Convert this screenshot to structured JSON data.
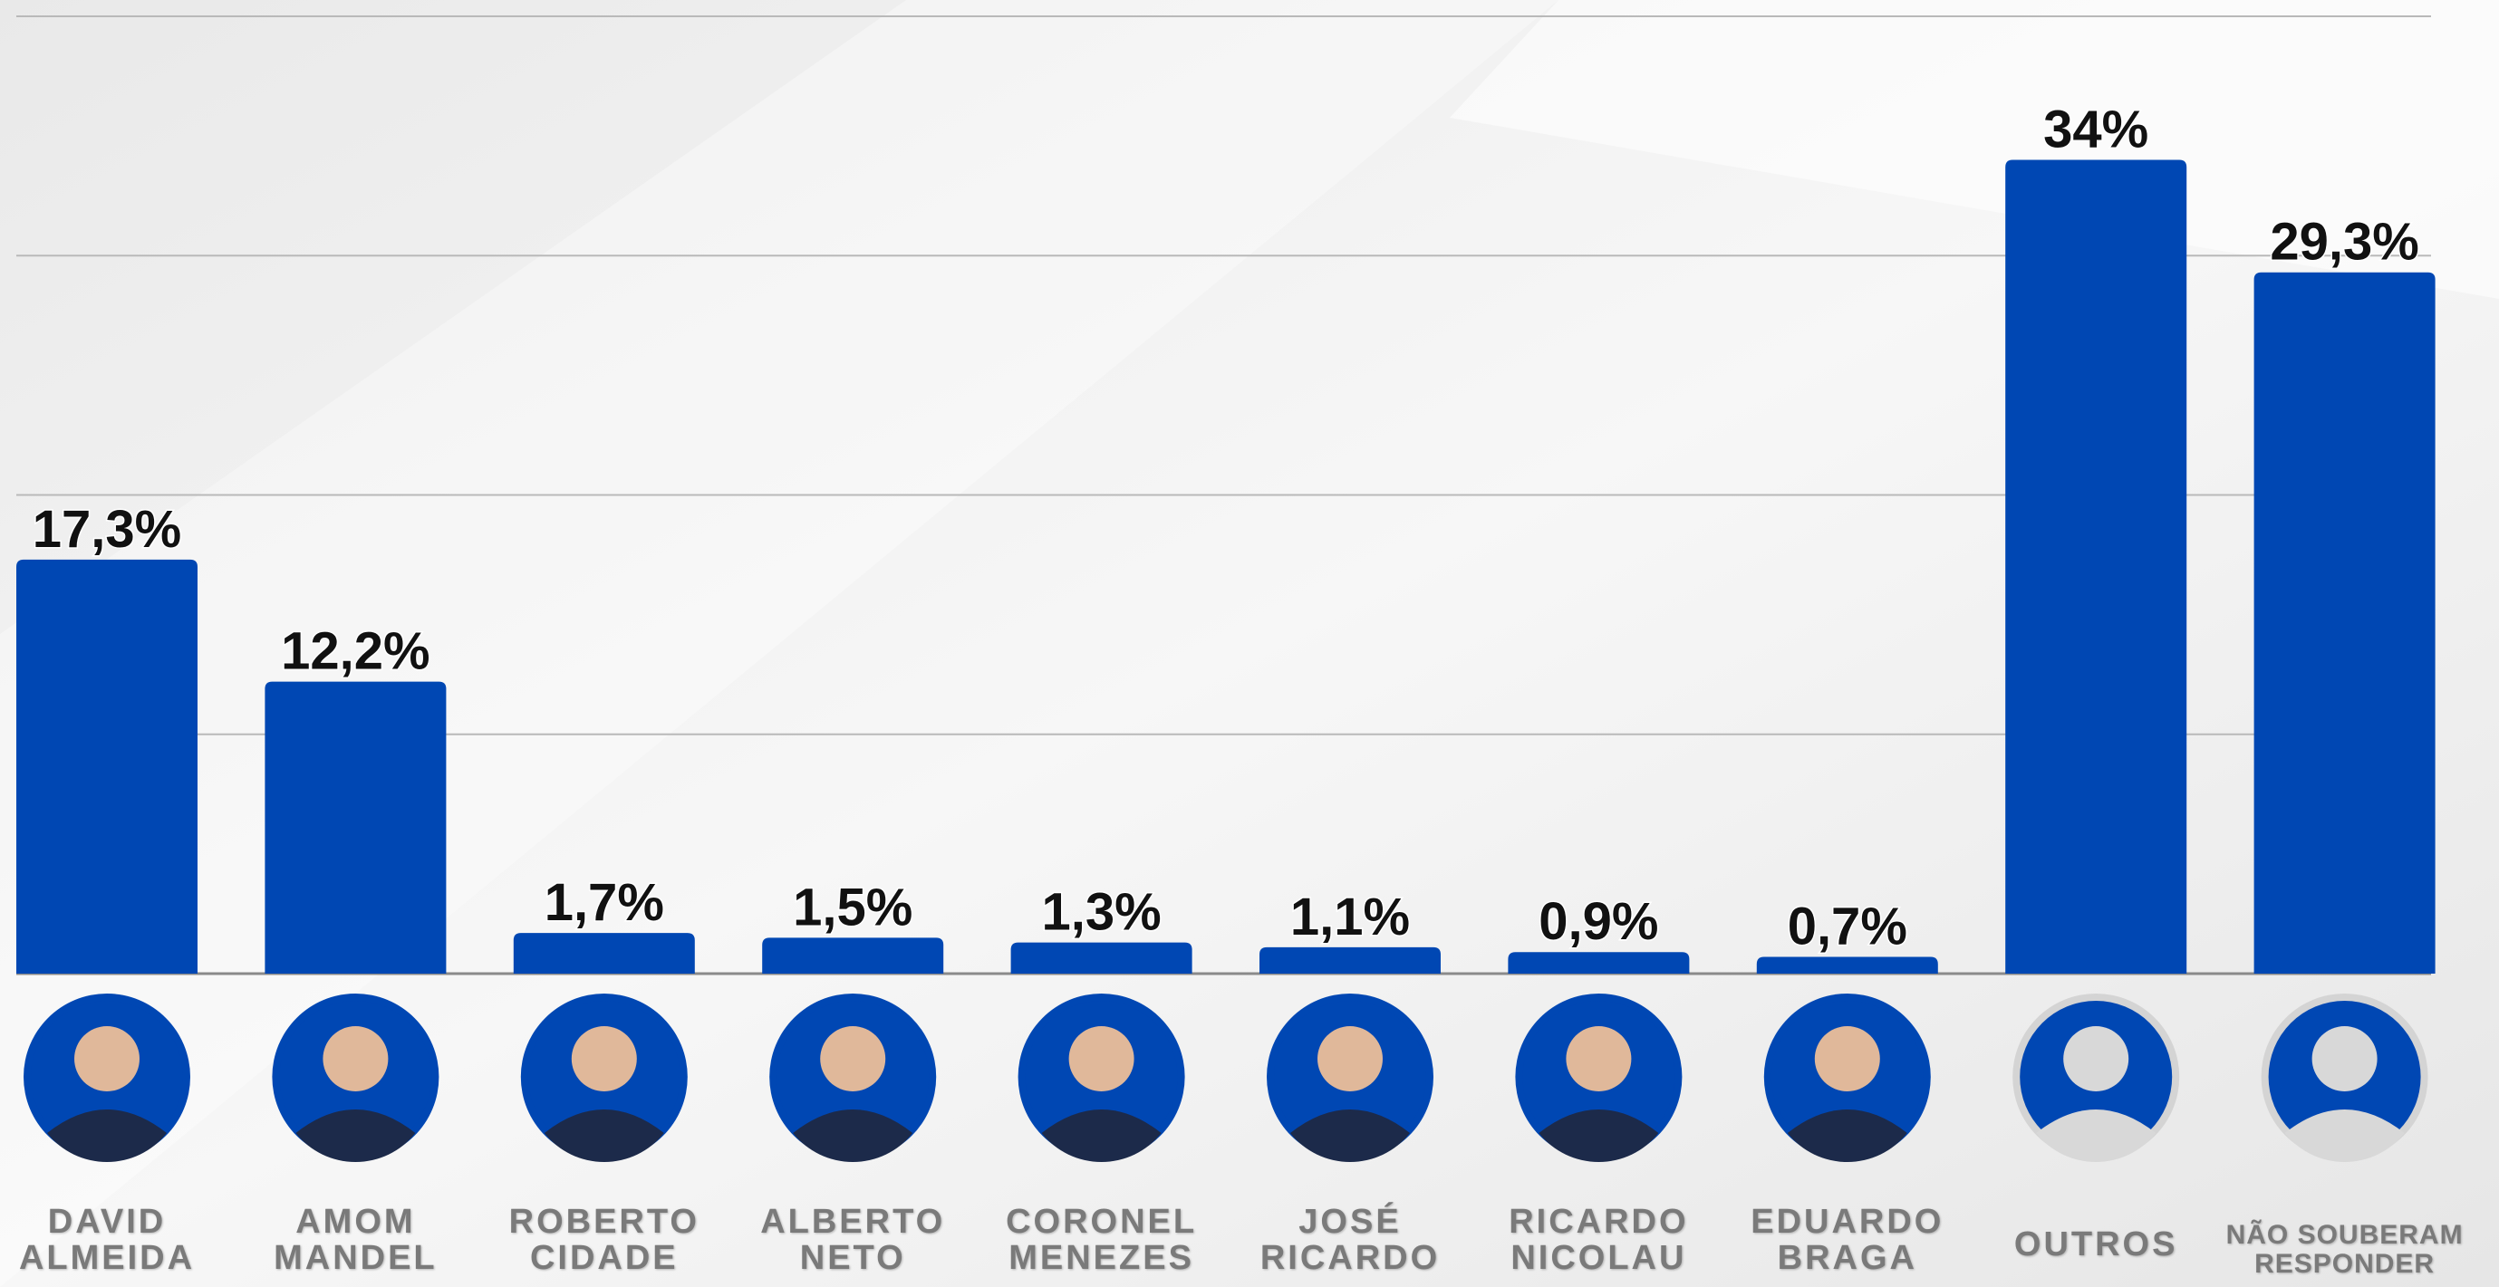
{
  "chart_data": {
    "type": "bar",
    "categories": [
      "DAVID ALMEIDA",
      "AMOM MANDEL",
      "ROBERTO CIDADE",
      "ALBERTO NETO",
      "CORONEL MENEZES",
      "JOSÉ RICARDO",
      "RICARDO NICOLAU",
      "EDUARDO BRAGA",
      "OUTROS",
      "NÃO SOUBERAM RESPONDER"
    ],
    "values": [
      17.3,
      12.2,
      1.7,
      1.5,
      1.3,
      1.1,
      0.9,
      0.7,
      34,
      29.3
    ],
    "value_labels": [
      "17,3%",
      "12,2%",
      "1,7%",
      "1,5%",
      "1,3%",
      "1,1%",
      "0,9%",
      "0,7%",
      "34%",
      "29,3%"
    ],
    "color": "#0047b3",
    "ylim": [
      0,
      40
    ],
    "yticks": [
      0,
      10,
      20,
      30,
      40
    ],
    "grid": true
  }
}
